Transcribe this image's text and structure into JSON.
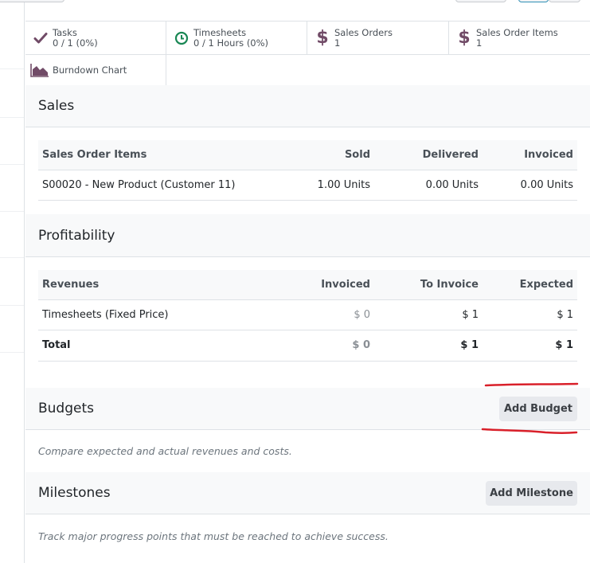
{
  "stat_buttons": [
    {
      "label": "Tasks",
      "value": "0 / 1 (0%)",
      "icon": "check-icon",
      "color": "#714b67"
    },
    {
      "label": "Timesheets",
      "value": "0 / 1 Hours (0%)",
      "icon": "clock-icon",
      "color": "#198754"
    },
    {
      "label": "Sales Orders",
      "value": "1",
      "icon": "dollar-icon",
      "color": "#714b67"
    },
    {
      "label": "Sales Order Items",
      "value": "1",
      "icon": "dollar-icon",
      "color": "#714b67"
    },
    {
      "label": "Burndown Chart",
      "value": "",
      "icon": "area-chart-icon",
      "color": "#714b67"
    }
  ],
  "sales": {
    "title": "Sales",
    "headers": [
      "Sales Order Items",
      "Sold",
      "Delivered",
      "Invoiced"
    ],
    "rows": [
      [
        "S00020 - New Product (Customer 11)",
        "1.00 Units",
        "0.00 Units",
        "0.00 Units"
      ]
    ]
  },
  "profitability": {
    "title": "Profitability",
    "headers": [
      "Revenues",
      "Invoiced",
      "To Invoice",
      "Expected"
    ],
    "rows": [
      [
        "Timesheets (Fixed Price)",
        "$ 0",
        "$ 1",
        "$ 1"
      ]
    ],
    "total": [
      "Total",
      "$ 0",
      "$ 1",
      "$ 1"
    ]
  },
  "budgets": {
    "title": "Budgets",
    "button": "Add Budget",
    "hint": "Compare expected and actual revenues and costs."
  },
  "milestones": {
    "title": "Milestones",
    "button": "Add Milestone",
    "hint": "Track major progress points that must be reached to achieve success."
  },
  "accent_color": "#714b67",
  "annotation_color": "#d9202a"
}
